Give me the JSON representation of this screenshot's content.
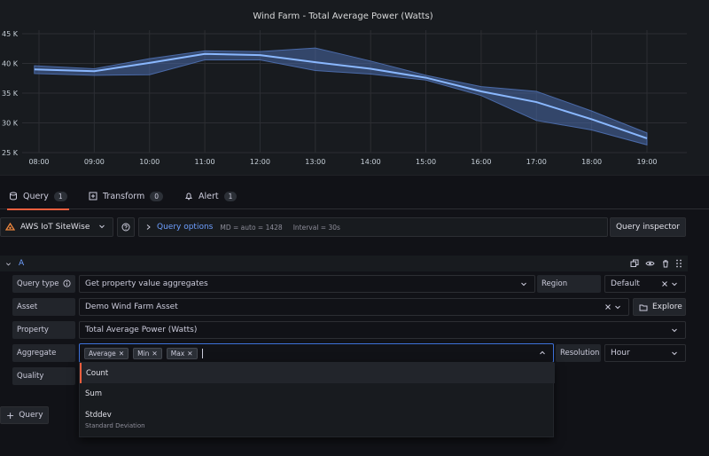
{
  "panel": {
    "title": "Wind Farm - Total Average Power (Watts)"
  },
  "chart_data": {
    "type": "area",
    "title": "Wind Farm - Total Average Power (Watts)",
    "y_ticks": [
      "45 K",
      "40 K",
      "35 K",
      "30 K",
      "25 K"
    ],
    "x_ticks": [
      "08:00",
      "09:00",
      "10:00",
      "11:00",
      "12:00",
      "13:00",
      "14:00",
      "15:00",
      "16:00",
      "17:00",
      "18:00",
      "19:00"
    ],
    "ylim": [
      25000,
      45000
    ],
    "x": [
      "07:55",
      "09:00",
      "10:00",
      "11:00",
      "12:00",
      "13:00",
      "14:00",
      "15:00",
      "16:00",
      "17:00",
      "18:00",
      "19:00"
    ],
    "series": [
      {
        "name": "Average",
        "values": [
          39000,
          38700,
          40100,
          41600,
          41400,
          40200,
          39100,
          37600,
          35300,
          33500,
          30600,
          27400
        ]
      },
      {
        "name": "Min",
        "values": [
          38300,
          38000,
          38100,
          40600,
          40600,
          38800,
          38200,
          37200,
          34600,
          30400,
          28800,
          26300
        ]
      },
      {
        "name": "Max",
        "values": [
          39600,
          39100,
          40800,
          42100,
          42000,
          42600,
          40400,
          38000,
          36100,
          35300,
          32000,
          28300
        ]
      }
    ],
    "colors": {
      "line": "#8ab8ff",
      "band": "#4a6aa8"
    },
    "grid": true,
    "legend": "none"
  },
  "tabs": [
    {
      "label": "Query",
      "count": "1",
      "icon": "database-icon"
    },
    {
      "label": "Transform",
      "count": "0",
      "icon": "transform-icon"
    },
    {
      "label": "Alert",
      "count": "1",
      "icon": "bell-icon"
    }
  ],
  "datasource": {
    "name": "AWS IoT SiteWise"
  },
  "query_options": {
    "label": "Query options",
    "md": "MD = auto = 1428",
    "interval": "Interval = 30s"
  },
  "query_inspector": "Query inspector",
  "query": {
    "ref_id": "A",
    "query_type_label": "Query type",
    "query_type_value": "Get property value aggregates",
    "region_label": "Region",
    "region_value": "Default",
    "asset_label": "Asset",
    "asset_value": "Demo Wind Farm Asset",
    "explore_label": "Explore",
    "property_label": "Property",
    "property_value": "Total Average Power (Watts)",
    "aggregate_label": "Aggregate",
    "aggregate_tags": [
      "Average",
      "Min",
      "Max"
    ],
    "resolution_label": "Resolution",
    "resolution_value": "Hour",
    "quality_label": "Quality"
  },
  "dropdown": {
    "options": [
      {
        "label": "Count",
        "desc": ""
      },
      {
        "label": "Sum",
        "desc": ""
      },
      {
        "label": "Stddev",
        "desc": "Standard Deviation"
      }
    ]
  },
  "add_query": "Query",
  "accent": "#f55f3e",
  "focus_color": "#3d71d9"
}
